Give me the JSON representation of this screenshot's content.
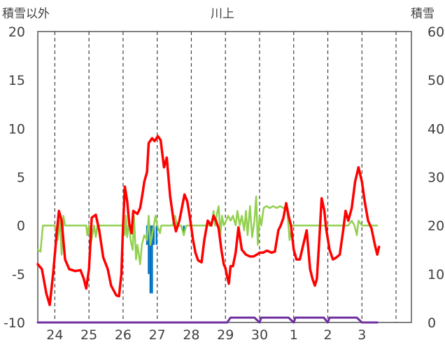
{
  "chart_data": {
    "type": "line",
    "title": "川上",
    "left_axis_label": "積雪以外",
    "right_axis_label": "積雪",
    "y_left": {
      "min": -10,
      "max": 20,
      "ticks": [
        20,
        15,
        10,
        5,
        0,
        -5,
        -10
      ]
    },
    "y_right": {
      "min": 0,
      "max": 60,
      "ticks": [
        60,
        50,
        40,
        30,
        20,
        10,
        0
      ]
    },
    "x": {
      "min": 23.5,
      "max": 34.45,
      "day_labels": [
        "24",
        "25",
        "26",
        "27",
        "28",
        "29",
        "30",
        "1",
        "2",
        "3"
      ]
    },
    "grid": {
      "vertical_dashed": true,
      "horizontal": false
    },
    "series": [
      {
        "kind": "line",
        "axis": "left",
        "color": "#ff0000",
        "points": [
          [
            23.5,
            -4.0
          ],
          [
            23.62,
            -4.5
          ],
          [
            23.75,
            -7.0
          ],
          [
            23.85,
            -8.2
          ],
          [
            23.95,
            -5.0
          ],
          [
            24.05,
            -1.0
          ],
          [
            24.12,
            1.5
          ],
          [
            24.2,
            0.5
          ],
          [
            24.3,
            -3.5
          ],
          [
            24.42,
            -4.5
          ],
          [
            24.6,
            -4.7
          ],
          [
            24.75,
            -4.6
          ],
          [
            24.85,
            -5.5
          ],
          [
            24.92,
            -6.5
          ],
          [
            25.0,
            -4.5
          ],
          [
            25.08,
            0.8
          ],
          [
            25.2,
            1.1
          ],
          [
            25.3,
            -0.5
          ],
          [
            25.42,
            -3.3
          ],
          [
            25.55,
            -4.5
          ],
          [
            25.65,
            -6.2
          ],
          [
            25.8,
            -7.2
          ],
          [
            25.88,
            -7.3
          ],
          [
            25.95,
            -5.0
          ],
          [
            26.0,
            0.0
          ],
          [
            26.05,
            4.0
          ],
          [
            26.12,
            2.5
          ],
          [
            26.18,
            0.2
          ],
          [
            26.25,
            -0.8
          ],
          [
            26.3,
            1.5
          ],
          [
            26.42,
            1.2
          ],
          [
            26.5,
            1.8
          ],
          [
            26.58,
            3.5
          ],
          [
            26.62,
            4.5
          ],
          [
            26.7,
            5.5
          ],
          [
            26.75,
            8.5
          ],
          [
            26.85,
            9.0
          ],
          [
            26.92,
            8.7
          ],
          [
            27.02,
            9.2
          ],
          [
            27.1,
            8.8
          ],
          [
            27.2,
            6.0
          ],
          [
            27.28,
            7.0
          ],
          [
            27.38,
            3.0
          ],
          [
            27.48,
            0.5
          ],
          [
            27.55,
            -0.6
          ],
          [
            27.65,
            0.5
          ],
          [
            27.8,
            3.2
          ],
          [
            27.88,
            2.5
          ],
          [
            27.95,
            1.0
          ],
          [
            28.05,
            -1.5
          ],
          [
            28.12,
            -2.8
          ],
          [
            28.2,
            -3.6
          ],
          [
            28.3,
            -3.8
          ],
          [
            28.38,
            -1.5
          ],
          [
            28.48,
            0.5
          ],
          [
            28.58,
            0.0
          ],
          [
            28.65,
            1.0
          ],
          [
            28.72,
            0.5
          ],
          [
            28.8,
            -0.3
          ],
          [
            28.88,
            -2.5
          ],
          [
            28.95,
            -4.0
          ],
          [
            29.0,
            -4.4
          ],
          [
            29.05,
            -5.3
          ],
          [
            29.1,
            -6.0
          ],
          [
            29.15,
            -4.2
          ],
          [
            29.22,
            -4.2
          ],
          [
            29.3,
            -2.8
          ],
          [
            29.38,
            -0.2
          ],
          [
            29.48,
            -2.5
          ],
          [
            29.6,
            -3.0
          ],
          [
            29.72,
            -3.2
          ],
          [
            29.82,
            -3.2
          ],
          [
            29.92,
            -3.0
          ],
          [
            30.0,
            -2.8
          ],
          [
            30.1,
            -2.8
          ],
          [
            30.22,
            -2.6
          ],
          [
            30.35,
            -2.8
          ],
          [
            30.45,
            -2.7
          ],
          [
            30.55,
            -0.5
          ],
          [
            30.62,
            0.0
          ],
          [
            30.7,
            0.8
          ],
          [
            30.78,
            2.3
          ],
          [
            30.85,
            1.0
          ],
          [
            30.92,
            0.0
          ],
          [
            31.0,
            -2.5
          ],
          [
            31.08,
            -3.5
          ],
          [
            31.18,
            -3.5
          ],
          [
            31.28,
            -2.0
          ],
          [
            31.38,
            -0.5
          ],
          [
            31.48,
            -4.5
          ],
          [
            31.55,
            -5.5
          ],
          [
            31.62,
            -6.2
          ],
          [
            31.68,
            -5.5
          ],
          [
            31.75,
            -1.5
          ],
          [
            31.82,
            2.8
          ],
          [
            31.9,
            1.5
          ],
          [
            31.95,
            -0.3
          ],
          [
            32.05,
            -2.5
          ],
          [
            32.15,
            -3.5
          ],
          [
            32.25,
            -3.3
          ],
          [
            32.35,
            -3.0
          ],
          [
            32.45,
            -0.5
          ],
          [
            32.52,
            1.5
          ],
          [
            32.6,
            0.5
          ],
          [
            32.7,
            1.8
          ],
          [
            32.8,
            4.5
          ],
          [
            32.9,
            6.0
          ],
          [
            33.0,
            4.5
          ],
          [
            33.08,
            2.5
          ],
          [
            33.18,
            0.5
          ],
          [
            33.28,
            -0.3
          ],
          [
            33.38,
            -2.0
          ],
          [
            33.45,
            -3.0
          ],
          [
            33.5,
            -2.2
          ]
        ]
      },
      {
        "kind": "line",
        "axis": "left",
        "color": "#92d050",
        "points": [
          [
            23.5,
            -2.5
          ],
          [
            23.58,
            -2.7
          ],
          [
            23.65,
            0.0
          ],
          [
            24.0,
            0.0
          ],
          [
            24.08,
            -1.5
          ],
          [
            24.15,
            0.5
          ],
          [
            24.2,
            -3.0
          ],
          [
            24.25,
            1.0
          ],
          [
            24.3,
            0.0
          ],
          [
            24.92,
            0.0
          ],
          [
            24.95,
            -1.0
          ],
          [
            25.0,
            0.0
          ],
          [
            25.05,
            -2.0
          ],
          [
            25.1,
            -1.0
          ],
          [
            25.15,
            0.0
          ],
          [
            25.2,
            -1.2
          ],
          [
            25.25,
            0.0
          ],
          [
            25.9,
            0.0
          ],
          [
            26.0,
            0.0
          ],
          [
            26.05,
            -1.0
          ],
          [
            26.08,
            1.0
          ],
          [
            26.12,
            -1.2
          ],
          [
            26.18,
            0.5
          ],
          [
            26.22,
            -1.5
          ],
          [
            26.28,
            -2.5
          ],
          [
            26.32,
            1.0
          ],
          [
            26.38,
            -3.5
          ],
          [
            26.42,
            -2.0
          ],
          [
            26.5,
            -4.0
          ],
          [
            26.55,
            -2.0
          ],
          [
            26.62,
            -1.0
          ],
          [
            26.7,
            -1.5
          ],
          [
            26.75,
            1.0
          ],
          [
            26.8,
            -2.0
          ],
          [
            26.85,
            -1.0
          ],
          [
            26.9,
            0.0
          ],
          [
            26.95,
            1.0
          ],
          [
            27.0,
            0.0
          ],
          [
            27.08,
            -0.8
          ],
          [
            27.12,
            0.0
          ],
          [
            27.45,
            0.0
          ],
          [
            27.52,
            1.0
          ],
          [
            27.58,
            0.0
          ],
          [
            27.7,
            0.0
          ],
          [
            27.78,
            -1.0
          ],
          [
            27.85,
            0.0
          ],
          [
            28.6,
            0.0
          ],
          [
            28.65,
            1.5
          ],
          [
            28.7,
            0.0
          ],
          [
            28.75,
            1.2
          ],
          [
            28.8,
            2.0
          ],
          [
            28.85,
            -1.0
          ],
          [
            28.9,
            1.0
          ],
          [
            28.95,
            0.0
          ],
          [
            29.02,
            0.5
          ],
          [
            29.08,
            1.0
          ],
          [
            29.15,
            0.5
          ],
          [
            29.22,
            1.0
          ],
          [
            29.3,
            0.0
          ],
          [
            29.35,
            1.5
          ],
          [
            29.42,
            0.0
          ],
          [
            29.48,
            1.0
          ],
          [
            29.55,
            -0.5
          ],
          [
            29.6,
            1.5
          ],
          [
            29.65,
            -1.0
          ],
          [
            29.72,
            2.0
          ],
          [
            29.78,
            -1.2
          ],
          [
            29.85,
            0.5
          ],
          [
            29.9,
            3.0
          ],
          [
            29.95,
            -2.0
          ],
          [
            30.0,
            1.0
          ],
          [
            30.05,
            0.0
          ],
          [
            30.12,
            1.8
          ],
          [
            30.2,
            2.0
          ],
          [
            30.3,
            1.8
          ],
          [
            30.4,
            2.0
          ],
          [
            30.5,
            1.8
          ],
          [
            30.6,
            2.0
          ],
          [
            30.7,
            1.8
          ],
          [
            30.8,
            2.0
          ],
          [
            30.88,
            -1.5
          ],
          [
            30.95,
            0.0
          ],
          [
            31.0,
            0.0
          ],
          [
            31.55,
            0.0
          ],
          [
            32.0,
            0.0
          ],
          [
            32.6,
            0.0
          ],
          [
            32.7,
            0.5
          ],
          [
            32.78,
            0.0
          ],
          [
            32.85,
            -1.0
          ],
          [
            32.9,
            0.5
          ],
          [
            33.0,
            0.0
          ],
          [
            33.45,
            0.0
          ]
        ]
      },
      {
        "kind": "line",
        "axis": "left",
        "color": "#7030a0",
        "points": [
          [
            23.5,
            -10.0
          ],
          [
            29.05,
            -10.0
          ],
          [
            29.15,
            -9.5
          ],
          [
            29.85,
            -9.5
          ],
          [
            30.0,
            -10.0
          ],
          [
            30.05,
            -9.5
          ],
          [
            30.85,
            -9.5
          ],
          [
            31.0,
            -10.0
          ],
          [
            31.05,
            -9.5
          ],
          [
            31.88,
            -9.5
          ],
          [
            32.0,
            -10.0
          ],
          [
            32.05,
            -9.5
          ],
          [
            32.85,
            -9.5
          ],
          [
            33.0,
            -10.0
          ],
          [
            33.45,
            -10.0
          ]
        ]
      },
      {
        "kind": "bars",
        "axis": "left",
        "color": "#0070c0",
        "width": 0.05,
        "points": [
          [
            26.7,
            -2.0
          ],
          [
            26.75,
            -5.0
          ],
          [
            26.8,
            -7.0
          ],
          [
            26.85,
            -7.0
          ],
          [
            26.9,
            -2.0
          ],
          [
            26.98,
            -2.0
          ],
          [
            27.78,
            -1.0
          ],
          [
            28.82,
            -1.0
          ]
        ]
      },
      {
        "kind": "bars",
        "axis": "left",
        "color": "#c00000",
        "width": 0.04,
        "points": [
          [
            28.85,
            -0.5
          ]
        ]
      }
    ]
  }
}
